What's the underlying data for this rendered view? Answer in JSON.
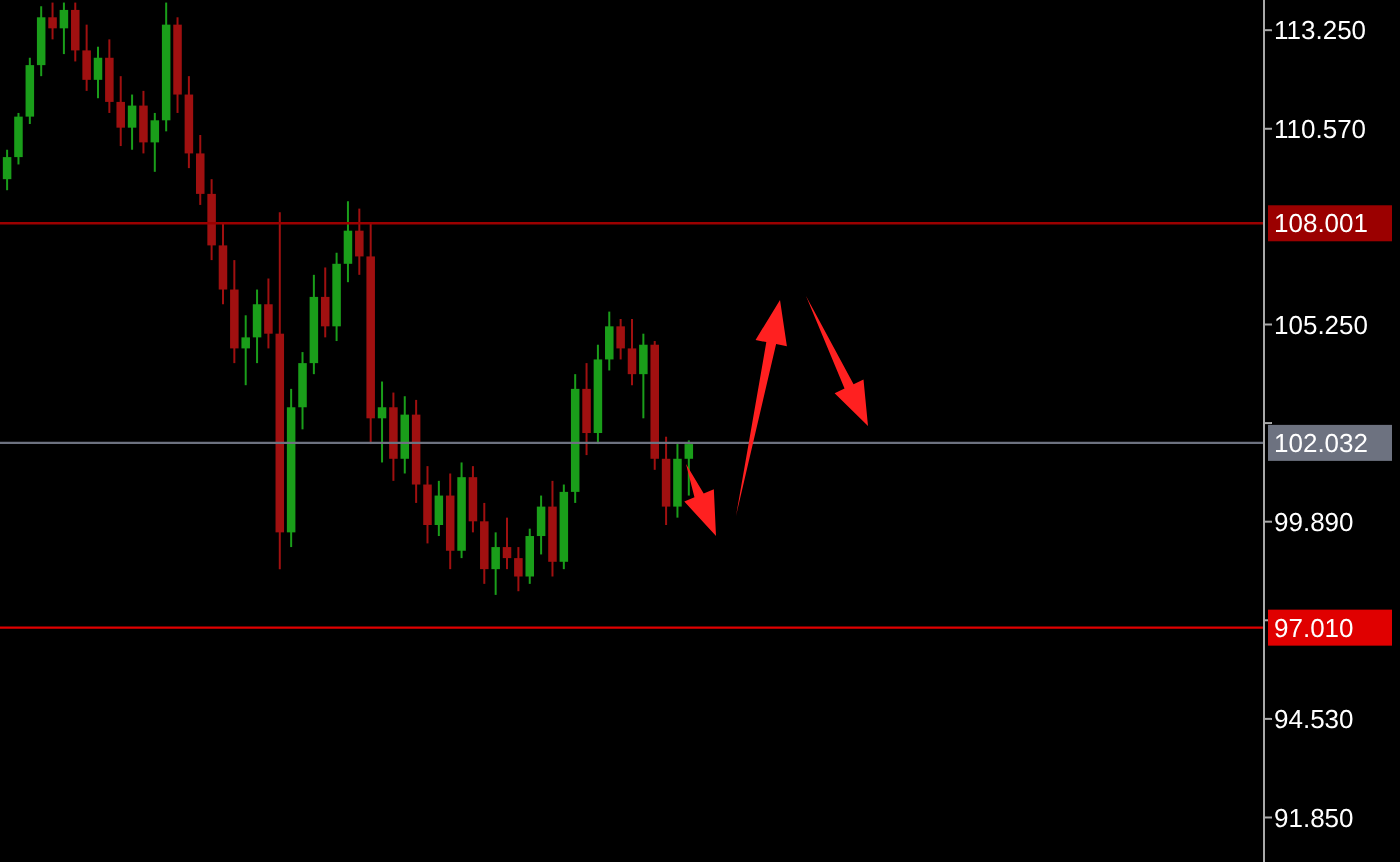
{
  "chart_data": {
    "type": "candlestick",
    "categories": [
      null,
      null,
      null,
      null,
      null,
      null,
      null,
      null,
      null,
      null,
      null,
      null,
      null,
      null,
      null,
      null,
      null,
      null,
      null,
      null,
      null,
      null,
      null,
      null,
      null,
      null,
      null,
      null,
      null,
      null,
      null,
      null,
      null,
      null,
      null,
      null,
      null,
      null,
      null,
      null,
      null,
      null,
      null,
      null,
      null,
      null,
      null,
      null,
      null,
      null,
      null,
      null,
      null,
      null,
      null,
      null,
      null,
      null,
      null,
      null,
      null,
      null,
      null,
      null,
      null,
      null,
      null,
      null,
      null,
      null,
      null,
      null,
      null,
      null,
      null,
      null,
      null,
      null,
      null,
      null,
      null,
      null,
      null,
      null,
      null,
      null,
      null,
      null,
      null,
      null,
      null,
      null,
      null,
      null,
      null,
      null,
      null,
      null,
      null,
      null,
      null,
      null,
      null,
      null,
      null,
      null,
      null,
      null,
      null,
      null,
      null
    ],
    "ohlc": [
      [
        109.2,
        110.0,
        108.9,
        109.8
      ],
      [
        109.8,
        111.0,
        109.6,
        110.9
      ],
      [
        110.9,
        112.5,
        110.7,
        112.3
      ],
      [
        112.3,
        113.9,
        112.0,
        113.6
      ],
      [
        113.6,
        114.0,
        113.0,
        113.3
      ],
      [
        113.3,
        114.0,
        112.6,
        113.8
      ],
      [
        113.8,
        114.0,
        112.4,
        112.7
      ],
      [
        112.7,
        113.4,
        111.6,
        111.9
      ],
      [
        111.9,
        112.8,
        111.4,
        112.5
      ],
      [
        112.5,
        113.0,
        111.0,
        111.3
      ],
      [
        111.3,
        112.0,
        110.1,
        110.6
      ],
      [
        110.6,
        111.5,
        110.0,
        111.2
      ],
      [
        111.2,
        111.6,
        109.9,
        110.2
      ],
      [
        110.2,
        111.0,
        109.4,
        110.8
      ],
      [
        110.8,
        114.0,
        110.5,
        113.4
      ],
      [
        113.4,
        113.6,
        111.0,
        111.5
      ],
      [
        111.5,
        112.0,
        109.5,
        109.9
      ],
      [
        109.9,
        110.4,
        108.5,
        108.8
      ],
      [
        108.8,
        109.2,
        107.0,
        107.4
      ],
      [
        107.4,
        108.0,
        105.8,
        106.2
      ],
      [
        106.2,
        107.0,
        104.2,
        104.6
      ],
      [
        104.6,
        105.5,
        103.6,
        104.9
      ],
      [
        104.9,
        106.2,
        104.2,
        105.8
      ],
      [
        105.8,
        106.5,
        104.6,
        105.0
      ],
      [
        105.0,
        108.3,
        98.6,
        99.6
      ],
      [
        99.6,
        103.5,
        99.2,
        103.0
      ],
      [
        103.0,
        104.5,
        102.4,
        104.2
      ],
      [
        104.2,
        106.6,
        103.9,
        106.0
      ],
      [
        106.0,
        106.8,
        104.9,
        105.2
      ],
      [
        105.2,
        107.2,
        104.8,
        106.9
      ],
      [
        106.9,
        108.6,
        106.4,
        107.8
      ],
      [
        107.8,
        108.4,
        106.6,
        107.1
      ],
      [
        107.1,
        108.0,
        102.0,
        102.7
      ],
      [
        102.7,
        103.7,
        101.5,
        103.0
      ],
      [
        103.0,
        103.4,
        101.0,
        101.6
      ],
      [
        101.6,
        103.3,
        101.2,
        102.8
      ],
      [
        102.8,
        103.2,
        100.4,
        100.9
      ],
      [
        100.9,
        101.4,
        99.3,
        99.8
      ],
      [
        99.8,
        101.0,
        99.5,
        100.6
      ],
      [
        100.6,
        101.2,
        98.6,
        99.1
      ],
      [
        99.1,
        101.5,
        98.9,
        101.1
      ],
      [
        101.1,
        101.4,
        99.6,
        99.9
      ],
      [
        99.9,
        100.4,
        98.2,
        98.6
      ],
      [
        98.6,
        99.6,
        97.9,
        99.2
      ],
      [
        99.2,
        100.0,
        98.6,
        98.9
      ],
      [
        98.9,
        99.2,
        98.0,
        98.4
      ],
      [
        98.4,
        99.7,
        98.2,
        99.5
      ],
      [
        99.5,
        100.6,
        99.0,
        100.3
      ],
      [
        100.3,
        101.0,
        98.4,
        98.8
      ],
      [
        98.8,
        100.9,
        98.6,
        100.7
      ],
      [
        100.7,
        103.9,
        100.4,
        103.5
      ],
      [
        103.5,
        104.2,
        101.7,
        102.3
      ],
      [
        102.3,
        104.7,
        102.0,
        104.3
      ],
      [
        104.3,
        105.6,
        104.0,
        105.2
      ],
      [
        105.2,
        105.4,
        104.3,
        104.6
      ],
      [
        104.6,
        105.4,
        103.6,
        103.9
      ],
      [
        103.9,
        105.0,
        102.7,
        104.7
      ],
      [
        104.7,
        104.8,
        101.3,
        101.6
      ],
      [
        101.6,
        102.2,
        99.8,
        100.3
      ],
      [
        100.3,
        102.0,
        100.0,
        101.6
      ],
      [
        101.6,
        102.1,
        100.6,
        102.0
      ],
      null,
      null,
      null,
      null,
      null,
      null,
      null,
      null,
      null,
      null,
      null,
      null,
      null,
      null,
      null,
      null,
      null,
      null,
      null,
      null,
      null,
      null,
      null,
      null,
      null,
      null,
      null,
      null,
      null,
      null,
      null,
      null,
      null,
      null,
      null,
      null,
      null,
      null,
      null,
      null,
      null,
      null,
      null,
      null,
      null,
      null,
      null,
      null,
      null,
      null
    ],
    "colors": [
      "#1a9e1a",
      "#1a9e1a",
      "#1a9e1a",
      "#1a9e1a",
      "#a01010",
      "#1a9e1a",
      "#a01010",
      "#a01010",
      "#1a9e1a",
      "#a01010",
      "#a01010",
      "#1a9e1a",
      "#a01010",
      "#1a9e1a",
      "#1a9e1a",
      "#a01010",
      "#a01010",
      "#a01010",
      "#a01010",
      "#a01010",
      "#a01010",
      "#1a9e1a",
      "#1a9e1a",
      "#a01010",
      "#a01010",
      "#1a9e1a",
      "#1a9e1a",
      "#1a9e1a",
      "#a01010",
      "#1a9e1a",
      "#1a9e1a",
      "#a01010",
      "#a01010",
      "#1a9e1a",
      "#a01010",
      "#1a9e1a",
      "#a01010",
      "#a01010",
      "#1a9e1a",
      "#a01010",
      "#1a9e1a",
      "#a01010",
      "#a01010",
      "#1a9e1a",
      "#a01010",
      "#a01010",
      "#1a9e1a",
      "#1a9e1a",
      "#a01010",
      "#1a9e1a",
      "#1a9e1a",
      "#a01010",
      "#1a9e1a",
      "#1a9e1a",
      "#a01010",
      "#a01010",
      "#1a9e1a",
      "#a01010",
      "#a01010",
      "#1a9e1a",
      "#1a9e1a",
      null,
      null,
      null,
      null,
      null,
      null,
      null,
      null,
      null,
      null,
      null,
      null,
      null,
      null,
      null,
      null,
      null,
      null,
      null,
      null,
      null,
      null,
      null,
      null,
      null,
      null,
      null,
      null,
      null,
      null,
      null,
      null,
      null,
      null,
      null,
      null,
      null,
      null,
      null,
      null,
      null,
      null,
      null,
      null,
      null,
      null,
      null,
      null,
      null,
      null
    ],
    "ylim": [
      90.64,
      114.07
    ],
    "yticks": [
      {
        "value": 91.85,
        "label": "91.850"
      },
      {
        "value": 94.53,
        "label": "94.530"
      },
      {
        "value": 97.21,
        "label": null
      },
      {
        "value": 99.89,
        "label": "99.890"
      },
      {
        "value": 102.57,
        "label": null
      },
      {
        "value": 105.25,
        "label": "105.250"
      },
      {
        "value": 110.57,
        "label": "110.570"
      },
      {
        "value": 113.25,
        "label": "113.250"
      }
    ],
    "tick_labels": "y",
    "ref_lines": [
      {
        "axis": "y",
        "value": 108.001,
        "label": "108.001",
        "color": "#9b0000"
      },
      {
        "axis": "y",
        "value": 102.032,
        "label": "102.032",
        "color": "#6d7280"
      },
      {
        "axis": "y",
        "value": 97.01,
        "label": "97.010",
        "color": "#e00000"
      }
    ]
  }
}
